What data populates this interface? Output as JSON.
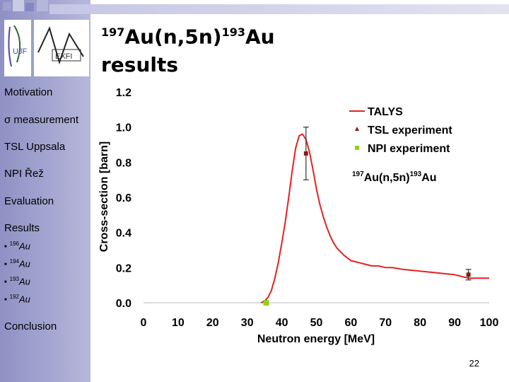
{
  "slide": {
    "title_line1_mass": "197",
    "title_line1_reaction": "Au(n,5n)",
    "title_line1_product_mass": "193",
    "title_line1_element": "Au",
    "title_line2": "results",
    "page_number": "22"
  },
  "sidebar": {
    "items": [
      {
        "label": "Motivation"
      },
      {
        "label": "σ measurement"
      },
      {
        "label": "TSL Uppsala"
      },
      {
        "label": "NPI Řež"
      },
      {
        "label": "Evaluation"
      },
      {
        "label": "Results"
      }
    ],
    "subitems": [
      {
        "mass": "196",
        "element": "Au"
      },
      {
        "mass": "194",
        "element": "Au"
      },
      {
        "mass": "193",
        "element": "Au"
      },
      {
        "mass": "192",
        "element": "Au"
      }
    ],
    "last_item": "Conclusion"
  },
  "colors": {
    "talys": "#e32222",
    "tsl": "#8b1a1a",
    "npi": "#8fd11f",
    "sidebar": "#a6a8d2"
  },
  "chart_data": {
    "type": "line",
    "xlabel": "Neutron energy [MeV]",
    "ylabel": "Cross-section [barn]",
    "xlim": [
      0,
      100
    ],
    "ylim": [
      0,
      1.2
    ],
    "x_ticks": [
      "0",
      "10",
      "20",
      "30",
      "40",
      "50",
      "60",
      "70",
      "80",
      "90",
      "100"
    ],
    "y_ticks": [
      "0.0",
      "0.2",
      "0.4",
      "0.6",
      "0.8",
      "1.0",
      "1.2"
    ],
    "legend_position": "top-right",
    "legend": [
      "TALYS",
      "TSL experiment",
      "NPI experiment"
    ],
    "annotation": {
      "mass": "197",
      "reaction": "Au(n,5n)",
      "product_mass": "193",
      "element": "Au"
    },
    "series": [
      {
        "name": "TALYS",
        "x": [
          34,
          35,
          36,
          37,
          38,
          39,
          40,
          41,
          42,
          43,
          44,
          45,
          46,
          47,
          48,
          49,
          50,
          51,
          52,
          53,
          54,
          55,
          56,
          58,
          60,
          62,
          64,
          66,
          68,
          70,
          72,
          75,
          80,
          85,
          90,
          92,
          94,
          96,
          98,
          100
        ],
        "y": [
          0.0,
          0.01,
          0.03,
          0.07,
          0.14,
          0.23,
          0.34,
          0.46,
          0.6,
          0.75,
          0.88,
          0.95,
          0.96,
          0.93,
          0.86,
          0.76,
          0.65,
          0.56,
          0.49,
          0.43,
          0.38,
          0.34,
          0.31,
          0.27,
          0.24,
          0.23,
          0.22,
          0.21,
          0.21,
          0.2,
          0.2,
          0.19,
          0.18,
          0.17,
          0.16,
          0.15,
          0.14,
          0.14,
          0.14,
          0.14
        ]
      },
      {
        "name": "TSL experiment",
        "points": [
          {
            "x": 47,
            "y": 0.85,
            "err": 0.15
          },
          {
            "x": 94,
            "y": 0.16,
            "err": 0.03
          }
        ]
      },
      {
        "name": "NPI experiment",
        "points": [
          {
            "x": 35.5,
            "y": 0.0
          }
        ]
      }
    ]
  }
}
